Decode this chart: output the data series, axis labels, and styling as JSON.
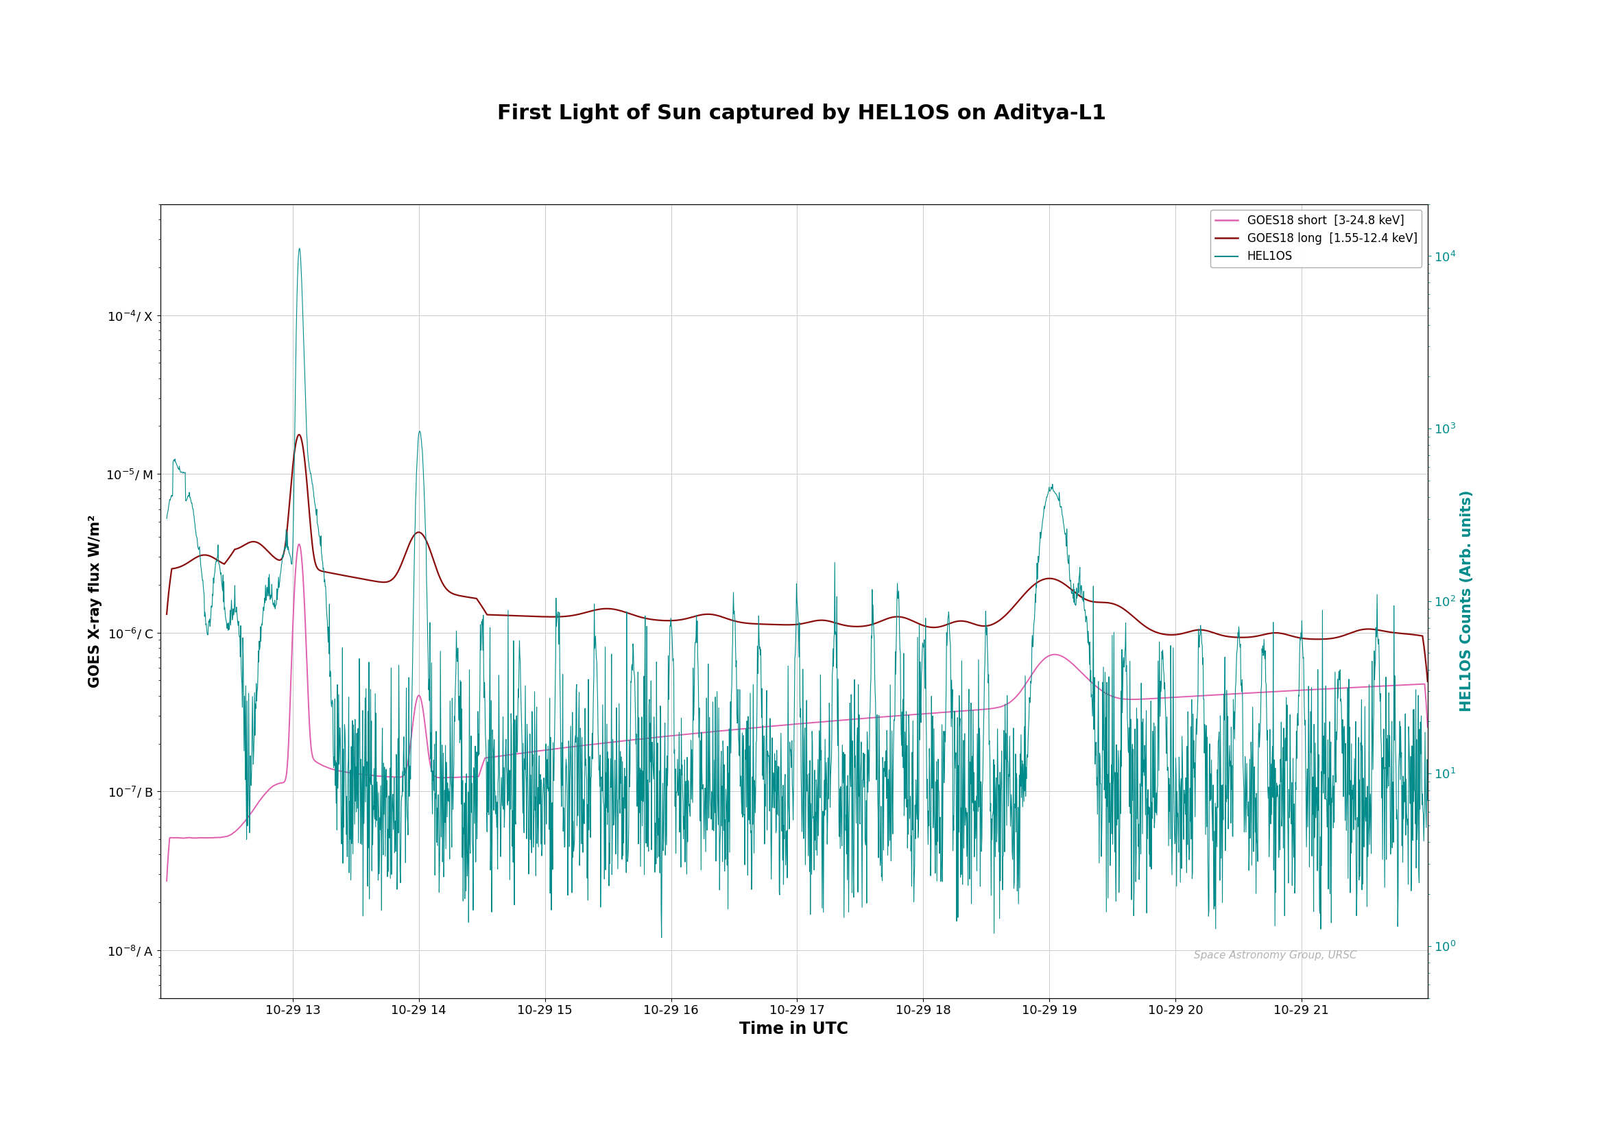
{
  "title": "First Light of Sun captured by HEL1OS on Aditya-L1",
  "xlabel": "Time in UTC",
  "ylabel_left": "GOES X-ray flux W/m²",
  "ylabel_right": "HEL1OS Counts (Arb. units)",
  "watermark": "Space Astronomy Group, URSC",
  "legend": [
    {
      "label": "GOES18 short  [3-24.8 keV]",
      "color": "#e060b0"
    },
    {
      "label": "GOES18 long  [1.55-12.4 keV]",
      "color": "#8b0e0e"
    },
    {
      "label": "HEL1OS",
      "color": "#008b8b"
    }
  ],
  "goes_short_color": "#e060b0",
  "goes_long_color": "#8b0e0e",
  "helios_color": "#008b8b",
  "x_tick_labels": [
    "10-29 13",
    "10-29 14",
    "10-29 15",
    "10-29 16",
    "10-29 17",
    "10-29 18",
    "10-29 19",
    "10-29 20",
    "10-29 21"
  ],
  "goes_ylim": [
    5e-09,
    0.0005
  ],
  "helios_ylim": [
    0.5,
    20000
  ],
  "goes_yticks": [
    1e-08,
    1e-07,
    1e-06,
    1e-05,
    0.0001
  ],
  "helios_yticks": [
    1,
    10,
    100,
    1000,
    10000
  ],
  "background_color": "#ffffff",
  "grid_color": "#cccccc",
  "title_fontsize": 22,
  "label_fontsize": 14,
  "tick_fontsize": 13
}
